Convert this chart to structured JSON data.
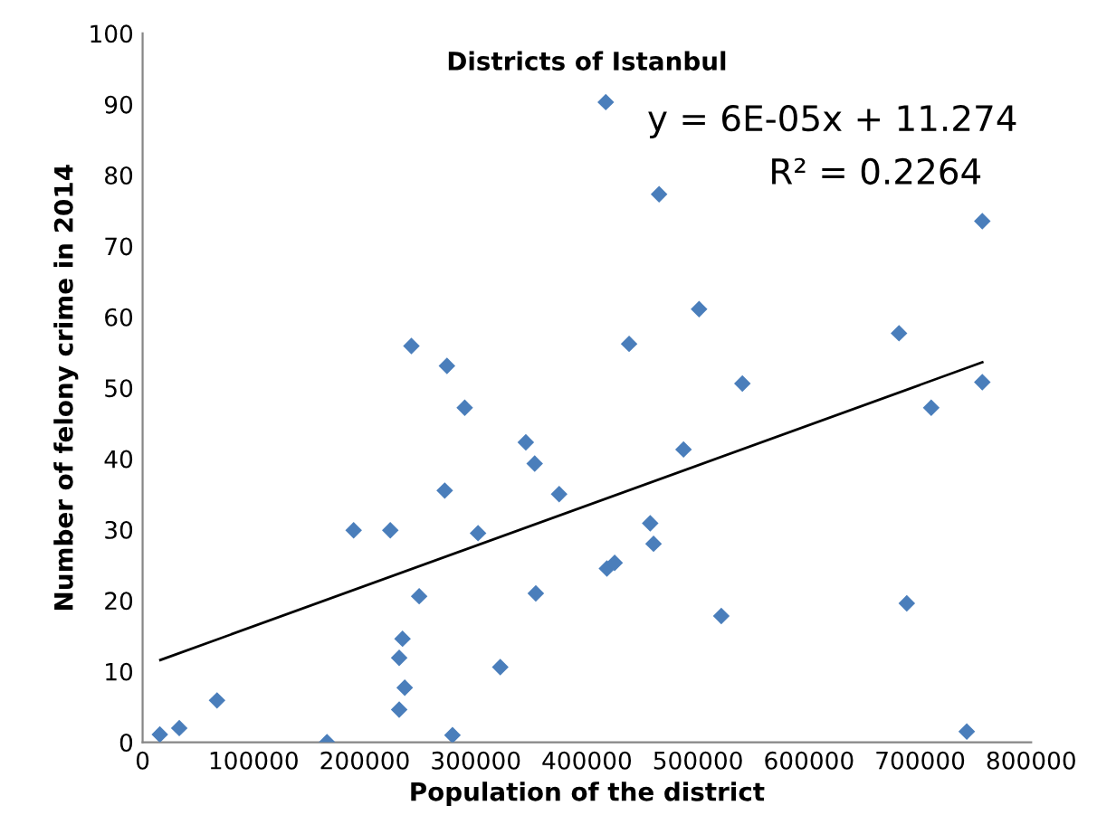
{
  "chart_data": {
    "type": "scatter",
    "title": "Districts of Istanbul",
    "xlabel": "Population of the district",
    "ylabel": "Number of felony crime in 2014",
    "annotations": [
      "y = 6E-05x + 11.274",
      "R² = 0.2264"
    ],
    "xlim": [
      0,
      800000
    ],
    "ylim": [
      0,
      100
    ],
    "xticks": [
      0,
      100000,
      200000,
      300000,
      400000,
      500000,
      600000,
      700000,
      800000
    ],
    "yticks": [
      0,
      10,
      20,
      30,
      40,
      50,
      60,
      70,
      80,
      90,
      100
    ],
    "grid": false,
    "legend": false,
    "marker": "diamond",
    "series": [
      {
        "color": "#4a7ebb",
        "x": [
          417000,
          242000,
          274000,
          290000,
          465000,
          756000,
          501000,
          438000,
          681000,
          540000,
          756000,
          710000,
          345000,
          353000,
          272000,
          375000,
          190000,
          223000,
          302000,
          418000,
          425000,
          249000,
          354000,
          234000,
          231000,
          322000,
          236000,
          231000,
          15500,
          33000,
          67000,
          166000,
          279000,
          487000,
          457000,
          460000,
          521000,
          688000,
          742000
        ],
        "values": [
          90.3,
          55.9,
          53.1,
          47.2,
          77.3,
          73.5,
          61.1,
          56.2,
          57.7,
          50.6,
          50.8,
          47.2,
          42.3,
          39.3,
          35.5,
          35.0,
          29.9,
          29.9,
          29.5,
          24.5,
          25.3,
          20.6,
          21.0,
          14.6,
          11.9,
          10.6,
          7.7,
          4.6,
          1.1,
          2.0,
          5.9,
          0,
          1.0,
          41.3,
          30.9,
          28.0,
          17.8,
          19.6,
          1.5
        ]
      },
      {
        "type": "line",
        "color": "#000000",
        "marker": "none",
        "line_style": "solid",
        "x": [
          16000,
          756000
        ],
        "values": [
          11.6,
          53.6
        ]
      }
    ]
  }
}
